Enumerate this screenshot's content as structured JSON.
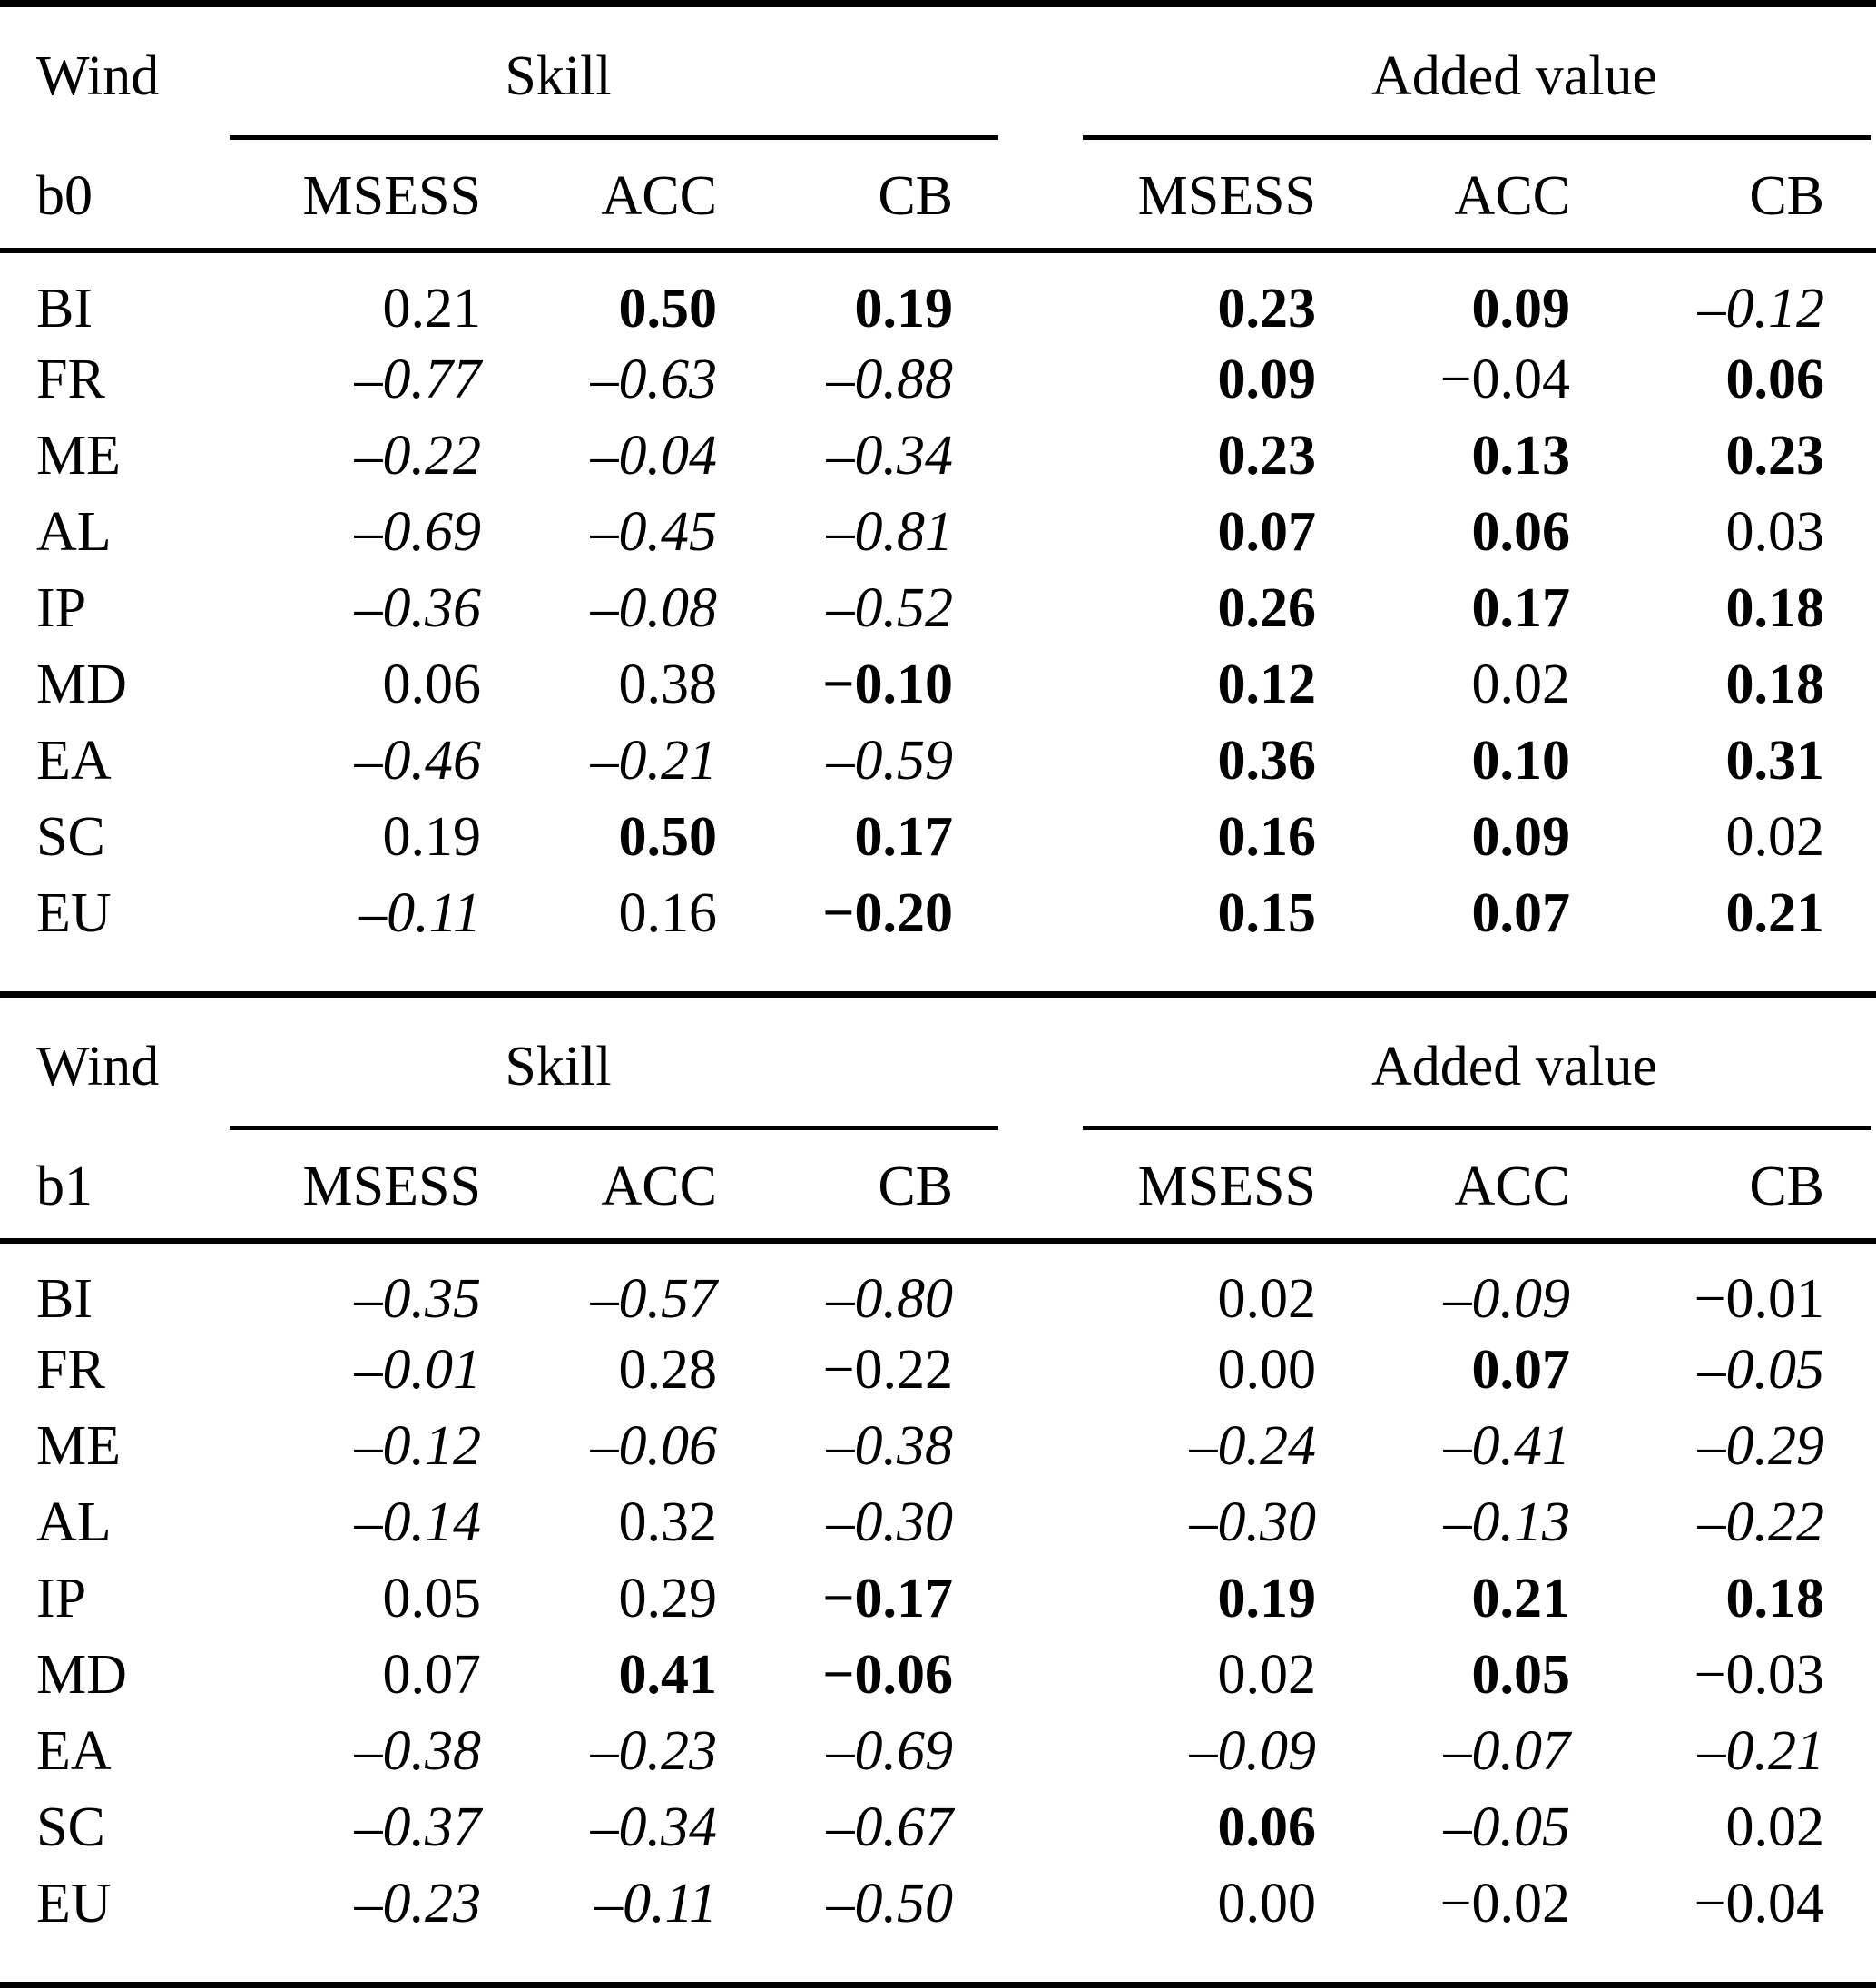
{
  "page": {
    "background_color": "#ffffff",
    "text_color": "#000000",
    "description": "Verification table for Wind: skill and added value scores (MSESS, ACC, CB) for regions, for boxes b0 and b1"
  },
  "tables": [
    {
      "id": "b0",
      "corner_line1": "Wind",
      "corner_line2": "b0",
      "groups": [
        {
          "label": "Skill"
        },
        {
          "label": "Added value"
        }
      ],
      "columns": [
        "MSESS",
        "ACC",
        "CB",
        "MSESS",
        "ACC",
        "CB"
      ],
      "rows": [
        {
          "label": "BI",
          "cells": [
            {
              "v": "0.21",
              "f": "roman"
            },
            {
              "v": "0.50",
              "f": "bold"
            },
            {
              "v": "0.19",
              "f": "bold"
            },
            {
              "v": "0.23",
              "f": "bold"
            },
            {
              "v": "0.09",
              "f": "bold"
            },
            {
              "v": "–0.12",
              "f": "italic"
            }
          ]
        },
        {
          "label": "FR",
          "cells": [
            {
              "v": "–0.77",
              "f": "italic"
            },
            {
              "v": "–0.63",
              "f": "italic"
            },
            {
              "v": "–0.88",
              "f": "italic"
            },
            {
              "v": "0.09",
              "f": "bold"
            },
            {
              "v": "−0.04",
              "f": "roman"
            },
            {
              "v": "0.06",
              "f": "bold"
            }
          ]
        },
        {
          "label": "ME",
          "cells": [
            {
              "v": "–0.22",
              "f": "italic"
            },
            {
              "v": "–0.04",
              "f": "italic"
            },
            {
              "v": "–0.34",
              "f": "italic"
            },
            {
              "v": "0.23",
              "f": "bold"
            },
            {
              "v": "0.13",
              "f": "bold"
            },
            {
              "v": "0.23",
              "f": "bold"
            }
          ]
        },
        {
          "label": "AL",
          "cells": [
            {
              "v": "–0.69",
              "f": "italic"
            },
            {
              "v": "–0.45",
              "f": "italic"
            },
            {
              "v": "–0.81",
              "f": "italic"
            },
            {
              "v": "0.07",
              "f": "bold"
            },
            {
              "v": "0.06",
              "f": "bold"
            },
            {
              "v": "0.03",
              "f": "roman"
            }
          ]
        },
        {
          "label": "IP",
          "cells": [
            {
              "v": "–0.36",
              "f": "italic"
            },
            {
              "v": "–0.08",
              "f": "italic"
            },
            {
              "v": "–0.52",
              "f": "italic"
            },
            {
              "v": "0.26",
              "f": "bold"
            },
            {
              "v": "0.17",
              "f": "bold"
            },
            {
              "v": "0.18",
              "f": "bold"
            }
          ]
        },
        {
          "label": "MD",
          "cells": [
            {
              "v": "0.06",
              "f": "roman"
            },
            {
              "v": "0.38",
              "f": "roman"
            },
            {
              "v": "−0.10",
              "f": "bold"
            },
            {
              "v": "0.12",
              "f": "bold"
            },
            {
              "v": "0.02",
              "f": "roman"
            },
            {
              "v": "0.18",
              "f": "bold"
            }
          ]
        },
        {
          "label": "EA",
          "cells": [
            {
              "v": "–0.46",
              "f": "italic"
            },
            {
              "v": "–0.21",
              "f": "italic"
            },
            {
              "v": "–0.59",
              "f": "italic"
            },
            {
              "v": "0.36",
              "f": "bold"
            },
            {
              "v": "0.10",
              "f": "bold"
            },
            {
              "v": "0.31",
              "f": "bold"
            }
          ]
        },
        {
          "label": "SC",
          "cells": [
            {
              "v": "0.19",
              "f": "roman"
            },
            {
              "v": "0.50",
              "f": "bold"
            },
            {
              "v": "0.17",
              "f": "bold"
            },
            {
              "v": "0.16",
              "f": "bold"
            },
            {
              "v": "0.09",
              "f": "bold"
            },
            {
              "v": "0.02",
              "f": "roman"
            }
          ]
        },
        {
          "label": "EU",
          "cells": [
            {
              "v": "–0.11",
              "f": "italic"
            },
            {
              "v": "0.16",
              "f": "roman"
            },
            {
              "v": "−0.20",
              "f": "bold"
            },
            {
              "v": "0.15",
              "f": "bold"
            },
            {
              "v": "0.07",
              "f": "bold"
            },
            {
              "v": "0.21",
              "f": "bold"
            }
          ]
        }
      ]
    },
    {
      "id": "b1",
      "corner_line1": "Wind",
      "corner_line2": "b1",
      "groups": [
        {
          "label": "Skill"
        },
        {
          "label": "Added value"
        }
      ],
      "columns": [
        "MSESS",
        "ACC",
        "CB",
        "MSESS",
        "ACC",
        "CB"
      ],
      "rows": [
        {
          "label": "BI",
          "cells": [
            {
              "v": "–0.35",
              "f": "italic"
            },
            {
              "v": "–0.57",
              "f": "italic"
            },
            {
              "v": "–0.80",
              "f": "italic"
            },
            {
              "v": "0.02",
              "f": "roman"
            },
            {
              "v": "–0.09",
              "f": "italic"
            },
            {
              "v": "−0.01",
              "f": "roman"
            }
          ]
        },
        {
          "label": "FR",
          "cells": [
            {
              "v": "–0.01",
              "f": "italic"
            },
            {
              "v": "0.28",
              "f": "roman"
            },
            {
              "v": "−0.22",
              "f": "roman"
            },
            {
              "v": "0.00",
              "f": "roman"
            },
            {
              "v": "0.07",
              "f": "bold"
            },
            {
              "v": "–0.05",
              "f": "italic"
            }
          ]
        },
        {
          "label": "ME",
          "cells": [
            {
              "v": "–0.12",
              "f": "italic"
            },
            {
              "v": "–0.06",
              "f": "italic"
            },
            {
              "v": "–0.38",
              "f": "italic"
            },
            {
              "v": "–0.24",
              "f": "italic"
            },
            {
              "v": "–0.41",
              "f": "italic"
            },
            {
              "v": "–0.29",
              "f": "italic"
            }
          ]
        },
        {
          "label": "AL",
          "cells": [
            {
              "v": "–0.14",
              "f": "italic"
            },
            {
              "v": "0.32",
              "f": "roman"
            },
            {
              "v": "–0.30",
              "f": "italic"
            },
            {
              "v": "–0.30",
              "f": "italic"
            },
            {
              "v": "–0.13",
              "f": "italic"
            },
            {
              "v": "–0.22",
              "f": "italic"
            }
          ]
        },
        {
          "label": "IP",
          "cells": [
            {
              "v": "0.05",
              "f": "roman"
            },
            {
              "v": "0.29",
              "f": "roman"
            },
            {
              "v": "−0.17",
              "f": "bold"
            },
            {
              "v": "0.19",
              "f": "bold"
            },
            {
              "v": "0.21",
              "f": "bold"
            },
            {
              "v": "0.18",
              "f": "bold"
            }
          ]
        },
        {
          "label": "MD",
          "cells": [
            {
              "v": "0.07",
              "f": "roman"
            },
            {
              "v": "0.41",
              "f": "bold"
            },
            {
              "v": "−0.06",
              "f": "bold"
            },
            {
              "v": "0.02",
              "f": "roman"
            },
            {
              "v": "0.05",
              "f": "bold"
            },
            {
              "v": "−0.03",
              "f": "roman"
            }
          ]
        },
        {
          "label": "EA",
          "cells": [
            {
              "v": "–0.38",
              "f": "italic"
            },
            {
              "v": "–0.23",
              "f": "italic"
            },
            {
              "v": "–0.69",
              "f": "italic"
            },
            {
              "v": "–0.09",
              "f": "italic"
            },
            {
              "v": "–0.07",
              "f": "italic"
            },
            {
              "v": "–0.21",
              "f": "italic"
            }
          ]
        },
        {
          "label": "SC",
          "cells": [
            {
              "v": "–0.37",
              "f": "italic"
            },
            {
              "v": "–0.34",
              "f": "italic"
            },
            {
              "v": "–0.67",
              "f": "italic"
            },
            {
              "v": "0.06",
              "f": "bold"
            },
            {
              "v": "–0.05",
              "f": "italic"
            },
            {
              "v": "0.02",
              "f": "roman"
            }
          ]
        },
        {
          "label": "EU",
          "cells": [
            {
              "v": "–0.23",
              "f": "italic"
            },
            {
              "v": "–0.11",
              "f": "italic"
            },
            {
              "v": "–0.50",
              "f": "italic"
            },
            {
              "v": "0.00",
              "f": "roman"
            },
            {
              "v": "−0.02",
              "f": "roman"
            },
            {
              "v": "−0.04",
              "f": "roman"
            }
          ]
        }
      ]
    }
  ]
}
